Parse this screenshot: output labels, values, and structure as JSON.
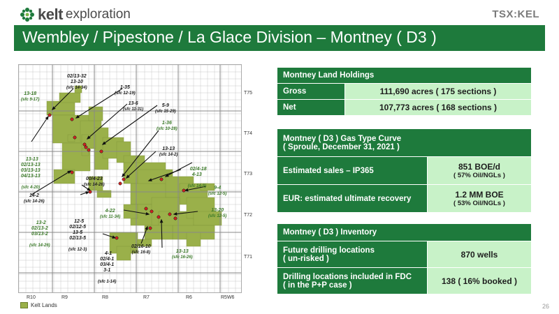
{
  "header": {
    "logo_brand": "kelt",
    "logo_subtitle": "exploration",
    "exchange": "TSX:KEL",
    "title": "Wembley / Pipestone / La Glace Division – Montney ( D3 )"
  },
  "map": {
    "townships": [
      "T75",
      "T74",
      "T73",
      "T72",
      "T71"
    ],
    "ranges": [
      "R10",
      "R9",
      "R8",
      "R7",
      "R6",
      "R5W6"
    ],
    "legend": "Kelt Lands",
    "labels": [
      {
        "name": "02/13-32",
        "sub": "",
        "green": false
      },
      {
        "name": "13-10",
        "sub": "(sfc 14-34)",
        "green": false
      },
      {
        "name": "13-18",
        "sub": "(sfc 9-17)",
        "green": true
      },
      {
        "name": "1-35",
        "sub": "(sfc 12-19)",
        "green": false
      },
      {
        "name": "13-6",
        "sub": "(sfc 11-31)",
        "green": false
      },
      {
        "name": "5-9",
        "sub": "(sfc 15-29)",
        "green": false
      },
      {
        "name": "1-36",
        "sub": "(sfc 10-28)",
        "green": true
      },
      {
        "name": "13-13",
        "sub": "(sfc 14-2)",
        "green": false
      },
      {
        "name": "13-13\n02/13-13\n03/13-13\n04/13-13",
        "sub": "(sfc 4-20)",
        "green": true
      },
      {
        "name": "02/4-18\n4-13",
        "sub": "(sfc 14-9)",
        "green": true
      },
      {
        "name": "00/4-23",
        "sub": "(sfc 14-26)",
        "green": false
      },
      {
        "name": "9-4",
        "sub": "(sfc 12-5)",
        "green": true
      },
      {
        "name": "14-2",
        "sub": "(sfc 14-26)",
        "green": false
      },
      {
        "name": "13-20",
        "sub": "(sfc 12-5)",
        "green": true
      },
      {
        "name": "4-22",
        "sub": "(sfc 11-34)",
        "green": true
      },
      {
        "name": "13-2\n02/13-2\n03/13-2",
        "sub": "(sfc 14-26)",
        "green": true
      },
      {
        "name": "12-5\n02/12-5\n13-5\n02/13-5",
        "sub": "(sfc 12-3)",
        "green": false
      },
      {
        "name": "02/16-10",
        "sub": "(sfc 16-8)",
        "green": false
      },
      {
        "name": "13-13",
        "sub": "(sfc 16-26)",
        "green": true
      },
      {
        "name": "4-1\n02/4-1\n03/4-1\n3-1",
        "sub": "(sfc 1-14)",
        "green": false
      }
    ]
  },
  "land_holdings": {
    "title": "Montney Land Holdings",
    "rows": [
      {
        "label": "Gross",
        "value": "111,690 acres ( 175 sections )"
      },
      {
        "label": "Net",
        "value": "107,773 acres ( 168 sections )"
      }
    ]
  },
  "type_curve": {
    "title_line1": "Montney ( D3 ) Gas Type Curve",
    "title_line2": "( Sproule, December 31, 2021 )",
    "rows": [
      {
        "label": "Estimated sales – IP365",
        "value": "851 BOE/d",
        "sub": "( 57% Oil/NGLs )"
      },
      {
        "label": "EUR: estimated ultimate recovery",
        "value": "1.2 MM BOE",
        "sub": "( 53% Oil/NGLs )"
      }
    ]
  },
  "inventory": {
    "title": "Montney ( D3 ) Inventory",
    "rows": [
      {
        "label1": "Future drilling locations",
        "label2": "( un-risked )",
        "value": "870 wells"
      },
      {
        "label1": "Drilling locations included in FDC",
        "label2": "( in the P+P case )",
        "value": "138 ( 16% booked )"
      }
    ]
  },
  "page_number": "26",
  "colors": {
    "brand_green": "#1e7a3c",
    "value_fill": "#c8f2c8",
    "land_fill": "#9ab04a",
    "well_red": "#cc2222"
  }
}
